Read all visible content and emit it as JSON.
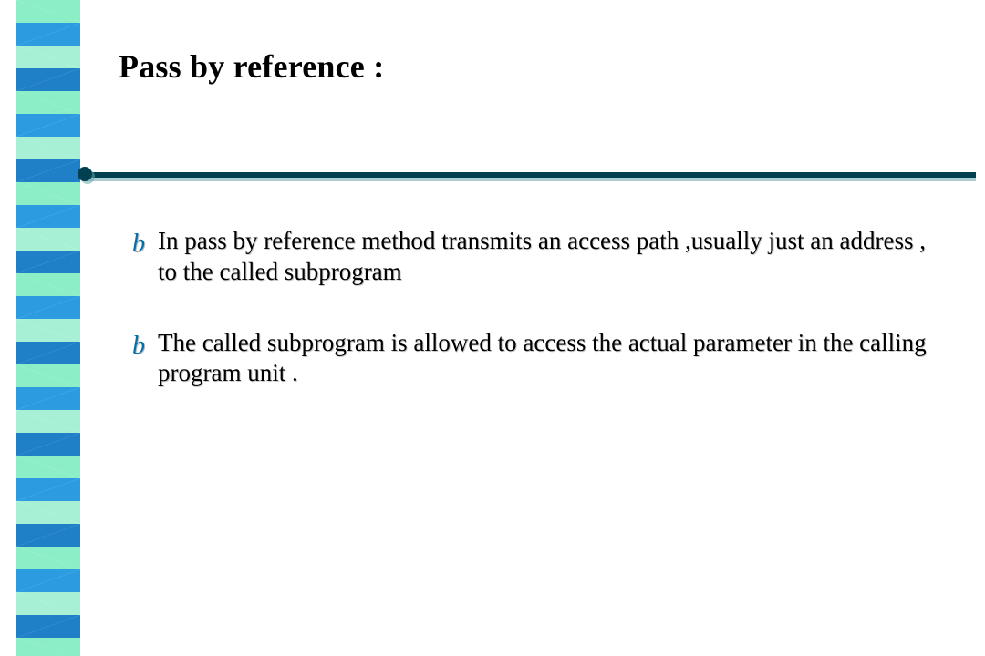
{
  "title": "Pass by reference :",
  "title_color": "#000000",
  "title_fontsize": 36,
  "rule": {
    "color": "#004050",
    "shadow_color": "#6aa5aa"
  },
  "bullet_glyph": "b",
  "bullet_glyph_color": "#0070a8",
  "body_fontsize": 27,
  "body_color": "#000000",
  "bullets": [
    "In pass by reference method transmits an access path ,usually just an address , to the called subprogram",
    "The called subprogram is allowed to access the actual parameter in the calling program unit ."
  ],
  "spiral": {
    "segments": 15,
    "segment_height": 50,
    "color_light": "#8ceec6",
    "color_light_alt": "#a7f0d6",
    "color_blue": "#2d9be0",
    "color_blue_alt": "#1f7fc7"
  },
  "background_color": "#ffffff"
}
